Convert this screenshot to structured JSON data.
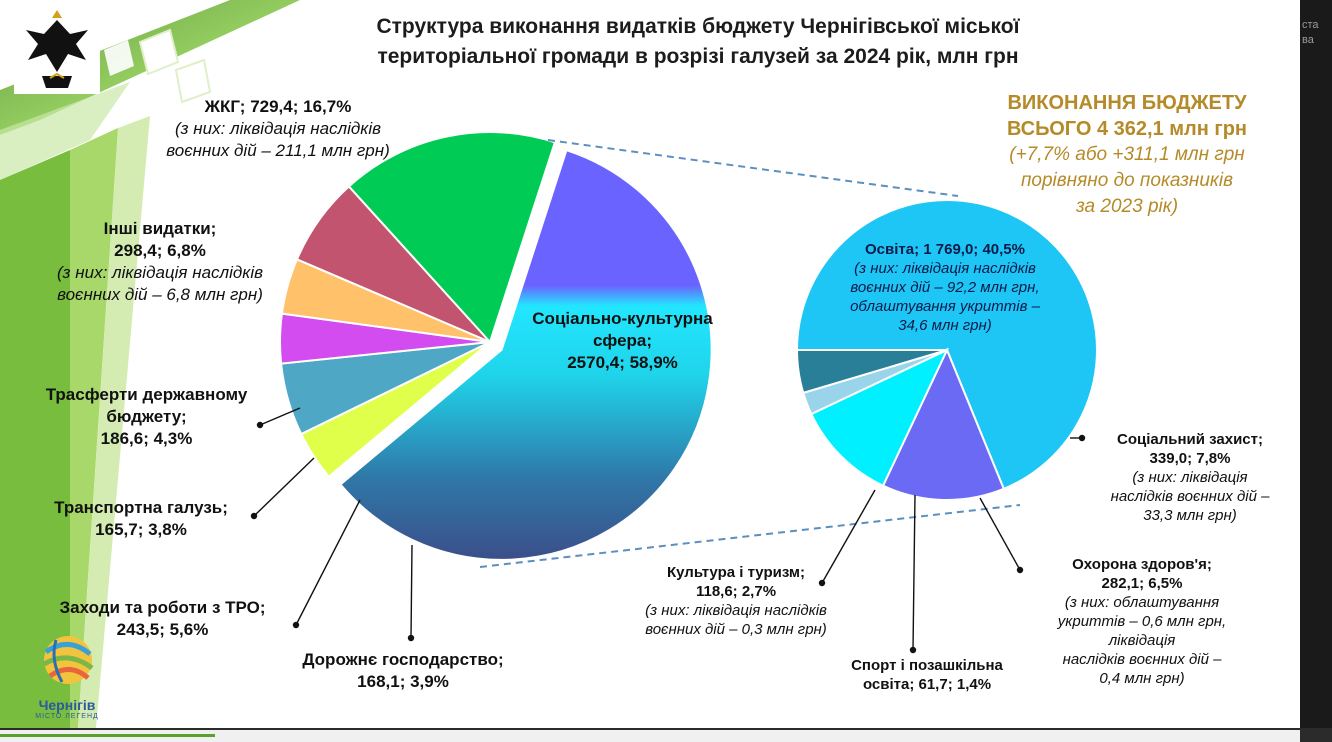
{
  "title_line1": "Структура виконання видатків бюджету Чернігівської міської",
  "title_line2": "територіальної громади в розрізі галузей за 2024 рік, млн грн",
  "summary": {
    "line1": "ВИКОНАННЯ БЮДЖЕТУ",
    "line2": "ВСЬОГО 4 362,1 млн грн",
    "line3": "(+7,7% або +311,1 млн грн",
    "line4": "порівняно до показників",
    "line5": "за 2023 рік)"
  },
  "edge_text": [
    "ста",
    "ва"
  ],
  "logo_text": {
    "name": "Чернігів",
    "tagline": "МІСТО ЛЕГЕНД"
  },
  "chart_data": [
    {
      "type": "pie",
      "title": "",
      "slices": [
        {
          "label": "Соціально-культурна сфера",
          "value": 2570.4,
          "percent": 58.9,
          "color": "#00e5ff"
        },
        {
          "label": "Дорожнє господарство",
          "value": 168.1,
          "percent": 3.9,
          "color": "#dfff4a"
        },
        {
          "label": "Заходи та роботи з ТРО",
          "value": 243.5,
          "percent": 5.6,
          "color": "#4ea8c5"
        },
        {
          "label": "Транспортна галузь",
          "value": 165.7,
          "percent": 3.8,
          "color": "#d24cf0"
        },
        {
          "label": "Трасферти державному бюджету",
          "value": 186.6,
          "percent": 4.3,
          "color": "#ffc16a"
        },
        {
          "label": "Інші видатки",
          "value": 298.4,
          "percent": 6.8,
          "color": "#c25470"
        },
        {
          "label": "ЖКГ",
          "value": 729.4,
          "percent": 16.7,
          "color": "#00cc55"
        }
      ]
    },
    {
      "type": "pie",
      "title": "",
      "slices": [
        {
          "label": "Освіта",
          "value": 1769.0,
          "percent": 40.5,
          "color": "#1ec6f5"
        },
        {
          "label": "Соціальний захист",
          "value": 339.0,
          "percent": 7.8,
          "color": "#6a6af5"
        },
        {
          "label": "Охорона здоров'я",
          "value": 282.1,
          "percent": 6.5,
          "color": "#00f0ff"
        },
        {
          "label": "Спорт і позашкільна освіта",
          "value": 61.7,
          "percent": 1.4,
          "color": "#9ad4ea"
        },
        {
          "label": "Культура і туризм",
          "value": 118.6,
          "percent": 2.7,
          "color": "#2a7f98"
        }
      ]
    }
  ],
  "labels": {
    "zhkg": {
      "title": "ЖКГ;  729,4; 16,7%",
      "note1": "(з них: ліквідація наслідків",
      "note2": "воєнних дій – 211,1 млн грн)"
    },
    "inshi": {
      "title1": "Інші видатки;",
      "title2": "298,4; 6,8%",
      "note1": "(з них: ліквідація наслідків",
      "note2": "воєнних дій – 6,8 млн грн)"
    },
    "transfer": {
      "line1": "Трасферти державному",
      "line2": "бюджету;",
      "line3": "186,6; 4,3%"
    },
    "transport": {
      "line1": "Транспортна галузь;",
      "line2": "165,7; 3,8%"
    },
    "tro": {
      "line1": "Заходи та роботи з ТРО;",
      "line2": "243,5; 5,6%"
    },
    "road": {
      "line1": "Дорожнє господарство;",
      "line2": "168,1; 3,9%"
    },
    "social_culture": {
      "line1": "Соціально-культурна",
      "line2": "сфера;",
      "line3": "2570,4; 58,9%"
    },
    "osvita": {
      "title": "Освіта; 1 769,0; 40,5%",
      "note1": "(з них: ліквідація наслідків",
      "note2": "воєнних дій – 92,2 млн грн,",
      "note3": "облаштування укриттів –",
      "note4": "34,6 млн грн)"
    },
    "social_protect": {
      "line1": "Соціальний захист;",
      "line2": "339,0; 7,8%",
      "note1": "(з них: ліквідація",
      "note2": "наслідків воєнних дій –",
      "note3": "33,3 млн грн)"
    },
    "health": {
      "line1": "Охорона здоров'я;",
      "line2": "282,1; 6,5%",
      "note1": "(з них: облаштування",
      "note2": "укриттів – 0,6 млн грн,",
      "note3": "ліквідація",
      "note4": "наслідків воєнних дій  –",
      "note5": "0,4 млн грн)"
    },
    "sport": {
      "line1": "Спорт і позашкільна",
      "line2": "освіта; 61,7; 1,4%"
    },
    "culture": {
      "line1": "Культура і туризм;",
      "line2": "118,6; 2,7%",
      "note1": "(з них: ліквідація наслідків",
      "note2": "воєнних дій – 0,3 млн грн)"
    }
  }
}
